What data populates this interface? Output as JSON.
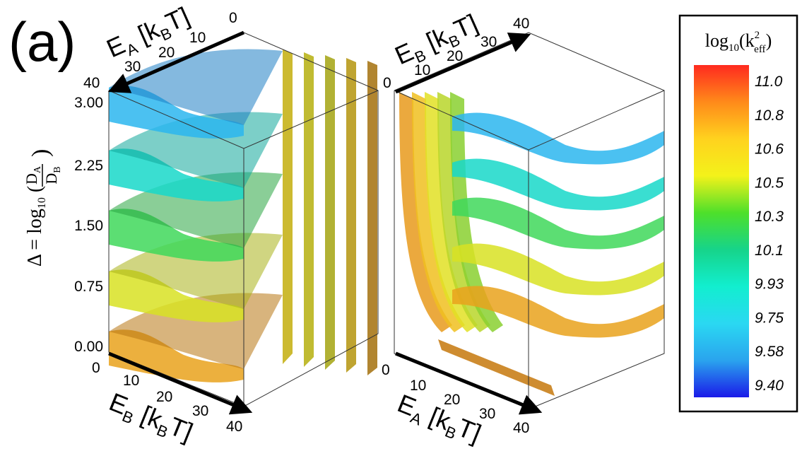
{
  "panel_label": "(a)",
  "chart_data": {
    "type": "surface3d",
    "z_axis": {
      "label_prefix": "Δ = log",
      "label_sub": "10",
      "label_num": "D",
      "label_num_sub": "A",
      "label_den": "D",
      "label_den_sub": "B",
      "ticks": [
        "3.00",
        "2.25",
        "1.50",
        "0.75",
        "0.00"
      ],
      "range": [
        0,
        3
      ]
    },
    "colorbar": {
      "title_prefix": "log",
      "title_sub": "10",
      "title_k": "k",
      "title_sup": "2",
      "title_ksub": "eff",
      "ticks": [
        "11.0",
        "10.8",
        "10.6",
        "10.5",
        "10.3",
        "10.1",
        "9.93",
        "9.75",
        "9.58",
        "9.40"
      ],
      "range": [
        9.4,
        11.0
      ],
      "colors": [
        "#ff2a1f",
        "#ff8a1a",
        "#ffd21e",
        "#f3f21a",
        "#4ee02a",
        "#16d48a",
        "#12eecf",
        "#2ad8f2",
        "#2aa4ee",
        "#1a1ae8"
      ]
    },
    "panels": [
      {
        "top_axis": {
          "var": "E",
          "sub": "A",
          "unit": "[k",
          "unit_sub": "B",
          "unit_end": "T]",
          "ticks": [
            "0",
            "10",
            "20",
            "30",
            "40"
          ]
        },
        "bottom_axis": {
          "var": "E",
          "sub": "B",
          "unit": "[k",
          "unit_sub": "B",
          "unit_end": "T]",
          "ticks": [
            "0",
            "10",
            "20",
            "30",
            "40"
          ]
        },
        "surface_levels": [
          0.0,
          0.75,
          1.5,
          2.25,
          3.0
        ]
      },
      {
        "top_axis": {
          "var": "E",
          "sub": "B",
          "unit": "[k",
          "unit_sub": "B",
          "unit_end": "T]",
          "ticks": [
            "0",
            "10",
            "20",
            "30",
            "40"
          ]
        },
        "bottom_axis": {
          "var": "E",
          "sub": "A",
          "unit": "[k",
          "unit_sub": "B",
          "unit_end": "T]",
          "ticks": [
            "0",
            "10",
            "20",
            "30",
            "40"
          ]
        },
        "surface_levels": [
          0.0,
          0.75,
          1.5,
          2.25,
          3.0
        ]
      }
    ]
  }
}
